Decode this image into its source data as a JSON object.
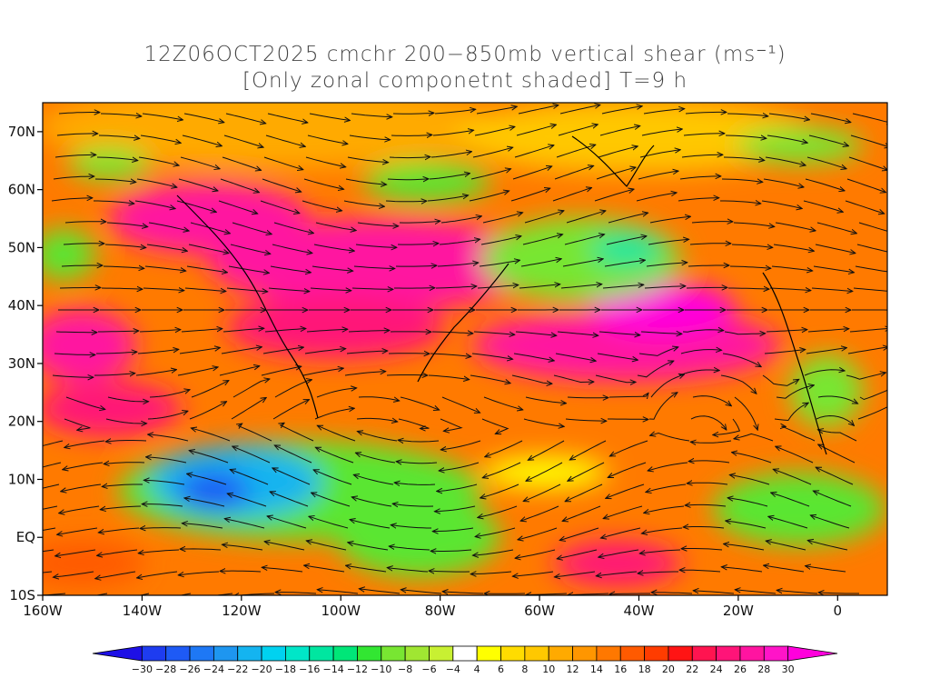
{
  "title": {
    "line1": "12Z06OCT2025 cmchr 200−850mb vertical shear (ms⁻¹)",
    "line2": "[Only zonal componetnt shaded] T=9 h"
  },
  "axes": {
    "lat_labels": [
      "70N",
      "60N",
      "50N",
      "40N",
      "30N",
      "20N",
      "10N",
      "EQ",
      "10S"
    ],
    "lon_labels": [
      "160W",
      "140W",
      "120W",
      "100W",
      "80W",
      "60W",
      "40W",
      "20W",
      "0"
    ],
    "lat_values": [
      70,
      60,
      50,
      40,
      30,
      20,
      10,
      0,
      -10
    ],
    "lon_values": [
      -160,
      -140,
      -120,
      -100,
      -80,
      -60,
      -40,
      -20,
      0
    ],
    "lon_range": [
      -160,
      10
    ],
    "lat_range": [
      -10,
      75
    ]
  },
  "colorbar": {
    "labels": [
      "−30",
      "−28",
      "−26",
      "−24",
      "−22",
      "−20",
      "−18",
      "−16",
      "−14",
      "−12",
      "−10",
      "−8",
      "−6",
      "−4",
      "4",
      "6",
      "8",
      "10",
      "12",
      "14",
      "16",
      "18",
      "20",
      "22",
      "24",
      "26",
      "28",
      "30"
    ],
    "colors": [
      "#1e10e6",
      "#1e3cf0",
      "#1e5af5",
      "#1e78f5",
      "#1e96f0",
      "#14b4f0",
      "#00d2f0",
      "#00e6c8",
      "#00e6a0",
      "#00e678",
      "#32e632",
      "#78e632",
      "#a0e632",
      "#c8f032",
      "#ffffff",
      "#ffff00",
      "#ffdc00",
      "#ffc800",
      "#ffaa00",
      "#ff9600",
      "#ff7800",
      "#ff5a00",
      "#ff3c00",
      "#ff1414",
      "#ff1450",
      "#ff1478",
      "#ff14a0",
      "#ff14c8",
      "#ff00dc"
    ]
  }
}
